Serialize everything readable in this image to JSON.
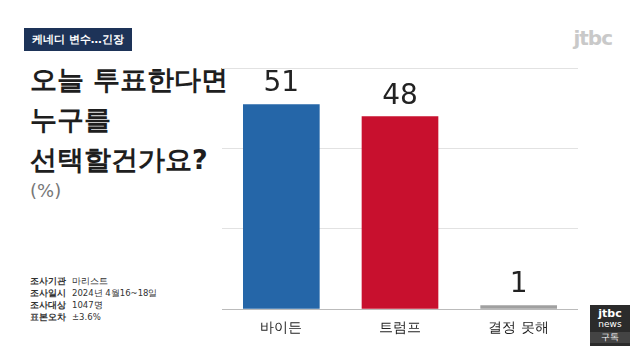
{
  "header": {
    "tag": "케네디 변수…긴장",
    "logo": "jtbc"
  },
  "chart_data": {
    "type": "bar",
    "title": "오늘 투표한다면\n누구를\n선택할건가요?",
    "subtitle": "(%)",
    "categories": [
      "바이든",
      "트럼프",
      "결정 못해"
    ],
    "values": [
      51,
      48,
      1
    ],
    "colors": [
      "#2566a8",
      "#c8102e",
      "#a0a0a0"
    ],
    "ylim": [
      0,
      60
    ],
    "yticks": [
      0,
      20,
      40,
      60
    ],
    "grid": true,
    "data_labels": true,
    "tick_labels": "x"
  },
  "survey": {
    "rows": [
      [
        "조사기관",
        "마리스트"
      ],
      [
        "조사일시",
        "2024년 4월16~18일"
      ],
      [
        "조사대상",
        "1047명"
      ],
      [
        "표본오차",
        "±3.6%"
      ]
    ]
  },
  "branding": {
    "channel": "jtbc",
    "section": "news",
    "subscribe": "구독"
  }
}
